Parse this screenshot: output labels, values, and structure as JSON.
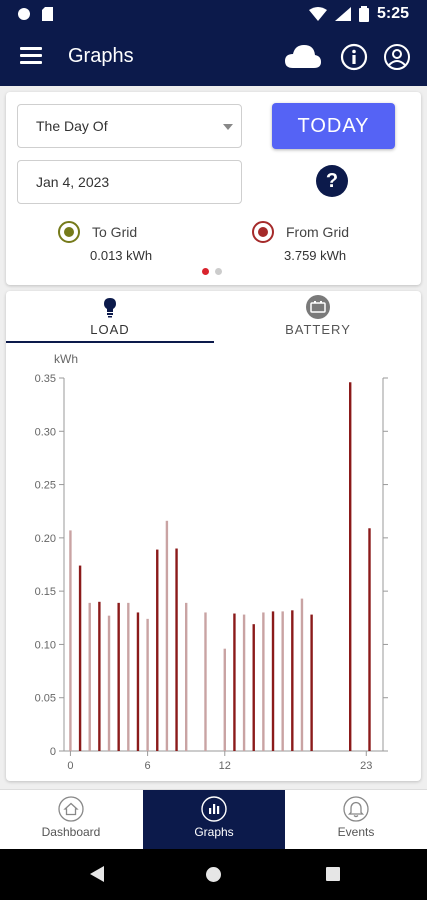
{
  "status_bar": {
    "time": "5:25"
  },
  "app_bar": {
    "title": "Graphs"
  },
  "controls": {
    "range_select": "The Day Of",
    "date_value": "Jan 4, 2023",
    "today_label": "TODAY",
    "help_label": "?"
  },
  "summary": {
    "to_grid": {
      "label": "To Grid",
      "value": "0.013 kWh",
      "color": "#757a1a"
    },
    "from_grid": {
      "label": "From Grid",
      "value": "3.759 kWh",
      "color": "#a52a2a"
    },
    "page_index": 0,
    "page_count": 2
  },
  "tabs": [
    {
      "label": "LOAD",
      "icon": "lightbulb-icon",
      "selected": true
    },
    {
      "label": "BATTERY",
      "icon": "battery-icon",
      "selected": false
    }
  ],
  "bottom_nav": [
    {
      "label": "Dashboard",
      "icon": "home-icon"
    },
    {
      "label": "Graphs",
      "icon": "bar-chart-icon",
      "selected": true
    },
    {
      "label": "Events",
      "icon": "bell-icon"
    }
  ],
  "chart_data": {
    "type": "bar",
    "ylabel": "kWh",
    "ylim": [
      0,
      0.35
    ],
    "yticks": [
      "0",
      "0.05",
      "0.10",
      "0.15",
      "0.20",
      "0.25",
      "0.30",
      "0.35"
    ],
    "xticks": [
      {
        "x": 0,
        "label": "0"
      },
      {
        "x": 6,
        "label": "6"
      },
      {
        "x": 12,
        "label": "12"
      },
      {
        "x": 23,
        "label": "23"
      }
    ],
    "xlim": [
      -0.5,
      24.3
    ],
    "series": [
      {
        "x": [
          0,
          1.5,
          3,
          4.5,
          6,
          7.5,
          9,
          10.5,
          12,
          13.5,
          15,
          16.5,
          18,
          19.5,
          21,
          22.5
        ],
        "values": [
          0.207,
          0.139,
          0.127,
          0.139,
          0.124,
          0.216,
          0.139,
          0.13,
          0.096,
          0.128,
          0.13,
          0.131,
          0.143,
          0.0,
          0.0,
          0.0
        ],
        "color": "#c9a3a3"
      },
      {
        "x": [
          0.75,
          2.25,
          3.75,
          5.25,
          6.75,
          8.25,
          9.75,
          11.25,
          12.75,
          14.25,
          15.75,
          17.25,
          18.75,
          20.25,
          21.75,
          23.25
        ],
        "values": [
          0.174,
          0.14,
          0.139,
          0.13,
          0.189,
          0.19,
          0.0,
          0.0,
          0.129,
          0.119,
          0.131,
          0.132,
          0.128,
          0.0,
          0.346,
          0.209
        ],
        "color": "#8b1a1a"
      }
    ]
  }
}
